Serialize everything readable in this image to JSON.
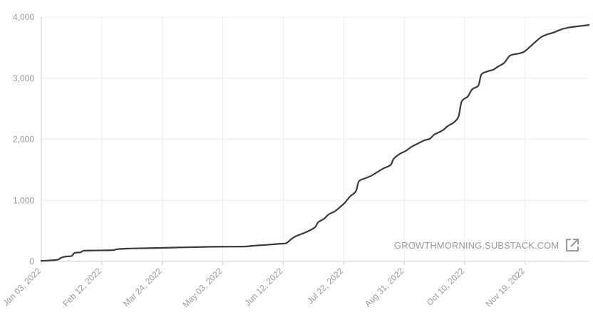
{
  "chart_data": {
    "type": "line",
    "title": "",
    "xlabel": "",
    "ylabel": "",
    "ylim": [
      0,
      4000
    ],
    "xlim": [
      "2022-01-03",
      "2022-12-31"
    ],
    "y_ticks": [
      "0",
      "1,000",
      "2,000",
      "3,000",
      "4,000"
    ],
    "y_tick_values": [
      0,
      1000,
      2000,
      3000,
      4000
    ],
    "x_ticks": [
      "Jan 03, 2022",
      "Feb 12, 2022",
      "Mar 24, 2022",
      "May 03, 2022",
      "Jun 12, 2022",
      "Jul 22, 2022",
      "Aug 31, 2022",
      "Oct 10, 2022",
      "Nov 19, 2022"
    ],
    "x_tick_dates": [
      "2022-01-03",
      "2022-02-12",
      "2022-03-24",
      "2022-05-03",
      "2022-06-12",
      "2022-07-22",
      "2022-08-31",
      "2022-10-10",
      "2022-11-19"
    ],
    "grid": true,
    "line_color": "#3a3a3a",
    "series": [
      {
        "points": [
          [
            "2022-01-03",
            10
          ],
          [
            "2022-01-10",
            20
          ],
          [
            "2022-01-14",
            30
          ],
          [
            "2022-01-16",
            60
          ],
          [
            "2022-01-19",
            80
          ],
          [
            "2022-01-23",
            90
          ],
          [
            "2022-01-25",
            140
          ],
          [
            "2022-01-29",
            150
          ],
          [
            "2022-01-31",
            175
          ],
          [
            "2022-02-07",
            180
          ],
          [
            "2022-02-19",
            185
          ],
          [
            "2022-02-22",
            200
          ],
          [
            "2022-02-28",
            210
          ],
          [
            "2022-03-07",
            215
          ],
          [
            "2022-03-20",
            220
          ],
          [
            "2022-04-05",
            230
          ],
          [
            "2022-04-20",
            238
          ],
          [
            "2022-05-03",
            242
          ],
          [
            "2022-05-18",
            245
          ],
          [
            "2022-05-22",
            255
          ],
          [
            "2022-05-28",
            265
          ],
          [
            "2022-06-05",
            280
          ],
          [
            "2022-06-10",
            290
          ],
          [
            "2022-06-14",
            300
          ],
          [
            "2022-06-17",
            360
          ],
          [
            "2022-06-20",
            410
          ],
          [
            "2022-06-24",
            450
          ],
          [
            "2022-06-28",
            490
          ],
          [
            "2022-07-03",
            560
          ],
          [
            "2022-07-05",
            640
          ],
          [
            "2022-07-09",
            700
          ],
          [
            "2022-07-12",
            770
          ],
          [
            "2022-07-16",
            820
          ],
          [
            "2022-07-20",
            900
          ],
          [
            "2022-07-23",
            970
          ],
          [
            "2022-07-26",
            1060
          ],
          [
            "2022-07-30",
            1150
          ],
          [
            "2022-08-01",
            1310
          ],
          [
            "2022-08-05",
            1360
          ],
          [
            "2022-08-09",
            1400
          ],
          [
            "2022-08-13",
            1460
          ],
          [
            "2022-08-17",
            1520
          ],
          [
            "2022-08-22",
            1580
          ],
          [
            "2022-08-24",
            1680
          ],
          [
            "2022-08-28",
            1760
          ],
          [
            "2022-09-01",
            1810
          ],
          [
            "2022-09-05",
            1880
          ],
          [
            "2022-09-09",
            1930
          ],
          [
            "2022-09-13",
            1980
          ],
          [
            "2022-09-17",
            2010
          ],
          [
            "2022-09-20",
            2080
          ],
          [
            "2022-09-25",
            2140
          ],
          [
            "2022-09-29",
            2220
          ],
          [
            "2022-10-03",
            2280
          ],
          [
            "2022-10-06",
            2380
          ],
          [
            "2022-10-08",
            2620
          ],
          [
            "2022-10-12",
            2700
          ],
          [
            "2022-10-15",
            2820
          ],
          [
            "2022-10-19",
            2880
          ],
          [
            "2022-10-21",
            3060
          ],
          [
            "2022-10-25",
            3110
          ],
          [
            "2022-10-29",
            3140
          ],
          [
            "2022-11-01",
            3190
          ],
          [
            "2022-11-05",
            3250
          ],
          [
            "2022-11-09",
            3370
          ],
          [
            "2022-11-14",
            3400
          ],
          [
            "2022-11-18",
            3430
          ],
          [
            "2022-11-22",
            3510
          ],
          [
            "2022-11-26",
            3600
          ],
          [
            "2022-11-30",
            3680
          ],
          [
            "2022-12-04",
            3720
          ],
          [
            "2022-12-08",
            3750
          ],
          [
            "2022-12-13",
            3800
          ],
          [
            "2022-12-18",
            3830
          ],
          [
            "2022-12-24",
            3850
          ],
          [
            "2022-12-31",
            3870
          ]
        ]
      }
    ]
  },
  "watermark": {
    "text": "GROWTHMORNING.SUBSTACK.COM",
    "icon": "external-link-icon"
  }
}
